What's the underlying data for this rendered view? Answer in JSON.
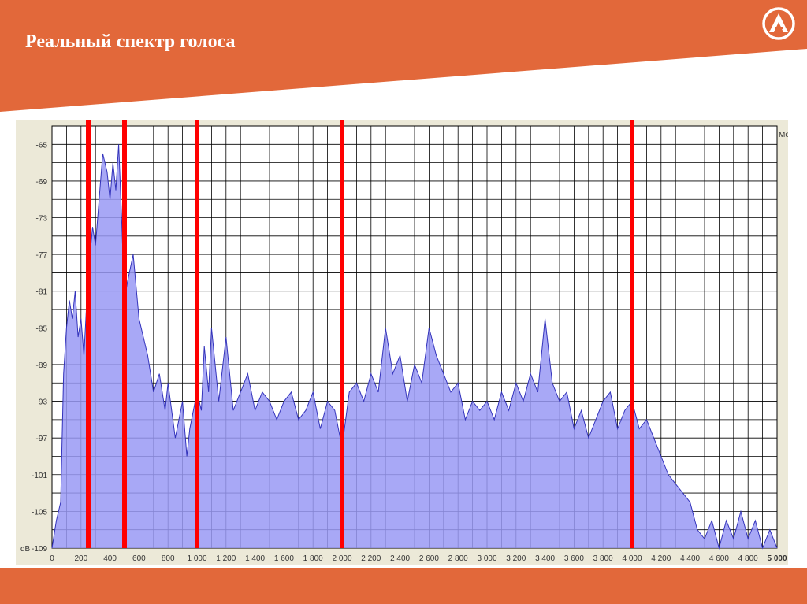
{
  "slide": {
    "title": "Реальный спектр голоса",
    "header_color": "#e2683a",
    "footer_color": "#e2683a",
    "logo_icon": "letter-a-logo-icon"
  },
  "chart_data": {
    "type": "area",
    "title": "",
    "xlabel": "",
    "ylabel": "dB",
    "corner_label": "Mo",
    "xlim": [
      0,
      5000
    ],
    "ylim": [
      -109,
      -63
    ],
    "x_ticks": [
      0,
      200,
      400,
      600,
      800,
      1000,
      1200,
      1400,
      1600,
      1800,
      2000,
      2200,
      2400,
      2600,
      2800,
      3000,
      3200,
      3400,
      3600,
      3800,
      4000,
      4200,
      4400,
      4600,
      4800,
      5000
    ],
    "x_tick_labels": [
      "0",
      "200",
      "400",
      "600",
      "800",
      "1 000",
      "1 200",
      "1 400",
      "1 600",
      "1 800",
      "2 000",
      "2 200",
      "2 400",
      "2 600",
      "2 800",
      "3 000",
      "3 200",
      "3 400",
      "3 600",
      "3 800",
      "4 000",
      "4 200",
      "4 400",
      "4 600",
      "4 800",
      "5 000"
    ],
    "y_ticks": [
      -65,
      -69,
      -73,
      -77,
      -81,
      -85,
      -89,
      -93,
      -97,
      -101,
      -105,
      -109
    ],
    "y_tick_labels": [
      "-65",
      "-69",
      "-73",
      "-77",
      "-81",
      "-85",
      "-89",
      "-93",
      "-97",
      "-101",
      "-105",
      "-109"
    ],
    "grid": true,
    "fill_color": "#9999f5",
    "line_color": "#3333bb",
    "marker_color": "#ff0000",
    "markers_x": [
      250,
      500,
      1000,
      2000,
      4000
    ],
    "series": [
      {
        "x": [
          0,
          30,
          60,
          80,
          100,
          120,
          140,
          160,
          180,
          200,
          220,
          250,
          280,
          300,
          330,
          350,
          380,
          400,
          420,
          440,
          460,
          480,
          500,
          520,
          560,
          600,
          630,
          660,
          700,
          740,
          780,
          800,
          850,
          900,
          930,
          950,
          1000,
          1030,
          1050,
          1080,
          1100,
          1150,
          1200,
          1250,
          1300,
          1350,
          1400,
          1450,
          1500,
          1550,
          1600,
          1650,
          1700,
          1750,
          1800,
          1850,
          1900,
          1950,
          2000,
          2050,
          2100,
          2150,
          2200,
          2250,
          2300,
          2350,
          2400,
          2450,
          2500,
          2550,
          2600,
          2650,
          2700,
          2750,
          2800,
          2850,
          2900,
          2950,
          3000,
          3050,
          3100,
          3150,
          3200,
          3250,
          3300,
          3350,
          3400,
          3450,
          3500,
          3550,
          3600,
          3650,
          3700,
          3750,
          3800,
          3850,
          3900,
          3950,
          4000,
          4050,
          4100,
          4150,
          4200,
          4250,
          4300,
          4350,
          4400,
          4450,
          4500,
          4550,
          4600,
          4650,
          4700,
          4750,
          4800,
          4850,
          4900,
          4950,
          5000
        ],
        "y": [
          -109,
          -106,
          -104,
          -90,
          -85,
          -82,
          -84,
          -81,
          -86,
          -84,
          -88,
          -79,
          -74,
          -76,
          -70,
          -66,
          -68,
          -71,
          -67,
          -70,
          -65,
          -73,
          -82,
          -80,
          -77,
          -84,
          -86,
          -88,
          -92,
          -90,
          -94,
          -91,
          -97,
          -93,
          -99,
          -96,
          -92,
          -94,
          -87,
          -92,
          -85,
          -93,
          -86,
          -94,
          -92,
          -90,
          -94,
          -92,
          -93,
          -95,
          -93,
          -92,
          -95,
          -94,
          -92,
          -96,
          -93,
          -94,
          -98,
          -92,
          -91,
          -93,
          -90,
          -92,
          -85,
          -90,
          -88,
          -93,
          -89,
          -91,
          -85,
          -88,
          -90,
          -92,
          -91,
          -95,
          -93,
          -94,
          -93,
          -95,
          -92,
          -94,
          -91,
          -93,
          -90,
          -92,
          -84,
          -91,
          -93,
          -92,
          -96,
          -94,
          -97,
          -95,
          -93,
          -92,
          -96,
          -94,
          -93,
          -96,
          -95,
          -97,
          -99,
          -101,
          -102,
          -103,
          -104,
          -107,
          -108,
          -106,
          -109,
          -106,
          -108,
          -105,
          -108,
          -106,
          -109,
          -107,
          -109
        ]
      }
    ]
  }
}
